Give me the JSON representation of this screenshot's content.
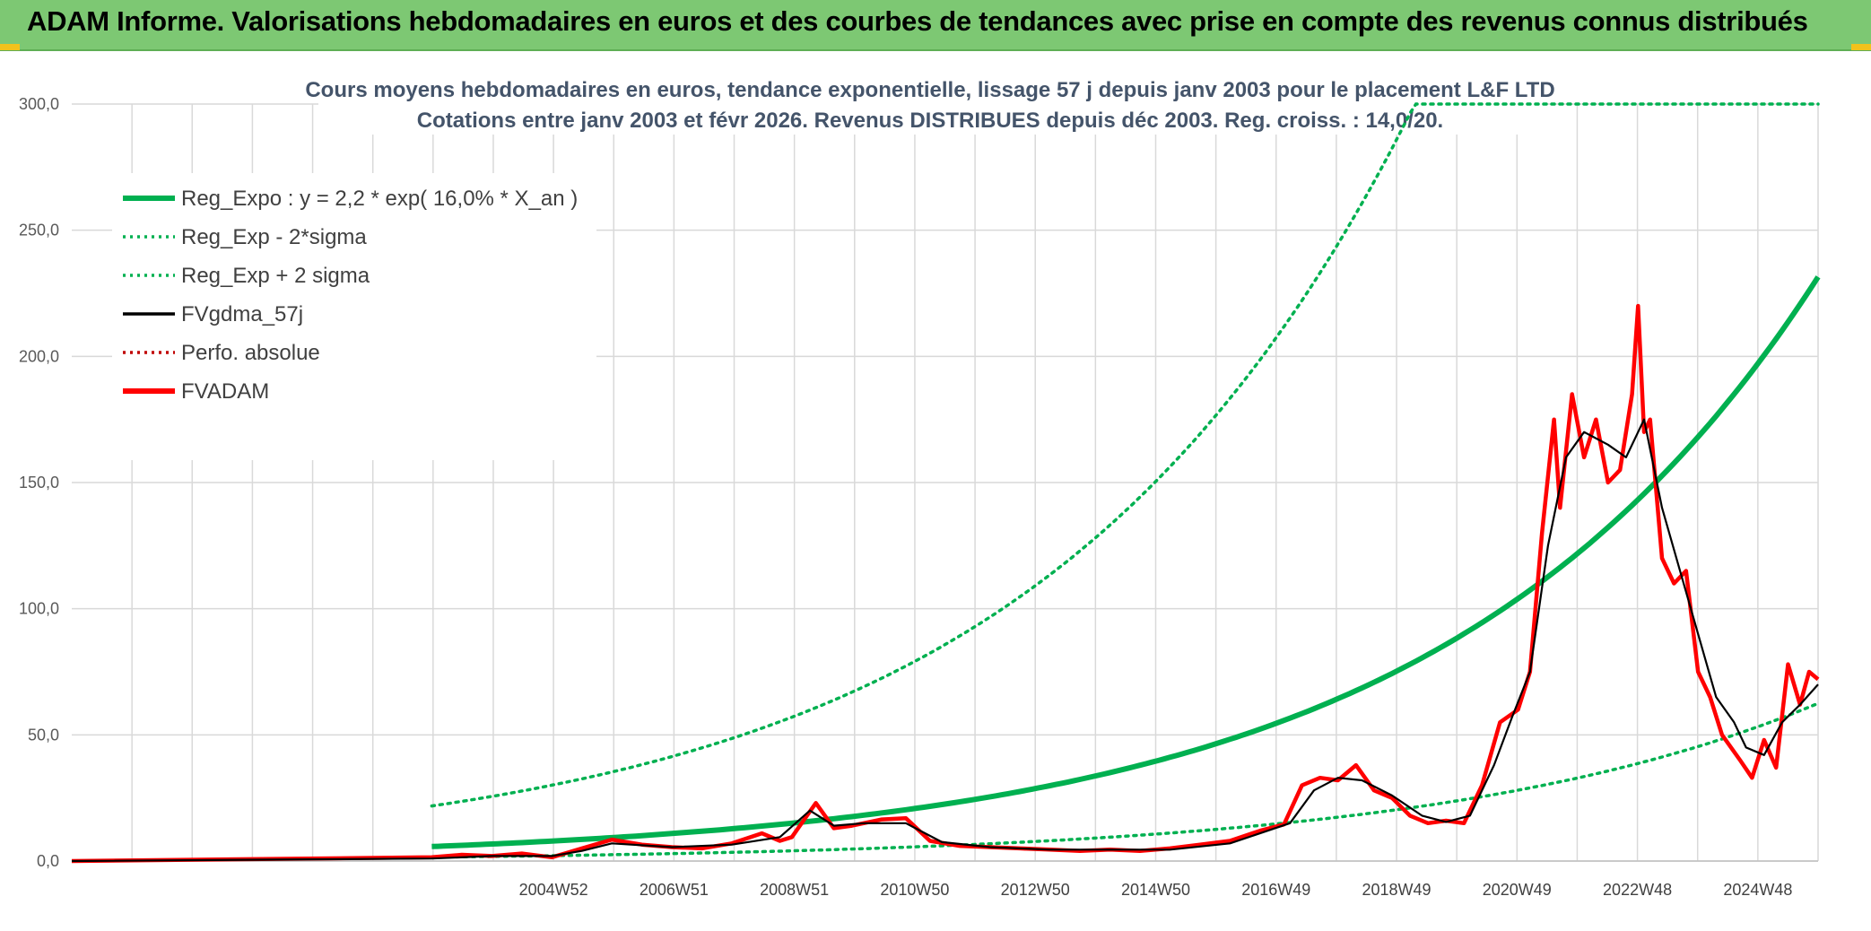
{
  "banner": {
    "title": "ADAM Informe. Valorisations hebdomadaires en euros et des courbes de tendances avec prise en compte des revenus connus distribués"
  },
  "colors": {
    "banner_bg": "#7dc873",
    "regression": "#00b050",
    "fvgdma": "#000000",
    "fvadam": "#ff0000",
    "perfo": "#c00000",
    "grid": "#d9d9d9"
  },
  "chart_data": {
    "type": "line",
    "title": "Cours moyens hebdomadaires en euros, tendance exponentielle, lissage 57 j depuis janv 2003 pour le placement L&F LTD",
    "subtitle": "Cotations entre janv 2003 et févr 2026. Revenus DISTRIBUES depuis déc 2003. Reg. croiss. : 14,0/20.",
    "y_ticks": [
      "0,0",
      "50,0",
      "100,0",
      "150,0",
      "200,0",
      "250,0",
      "300,0"
    ],
    "ylim": [
      0,
      300
    ],
    "x_ticks": [
      "2004W52",
      "2006W51",
      "2008W51",
      "2010W50",
      "2012W50",
      "2014W50",
      "2016W49",
      "2018W49",
      "2020W49",
      "2022W48",
      "2024W48"
    ],
    "xlim": [
      1997,
      2026.1
    ],
    "grid": true,
    "legend_position": "top-left",
    "legend": [
      {
        "label": "Reg_Expo : y = 2,2 * exp( 16,0% *  X_an )",
        "style": "solid-thick",
        "color": "#00b050"
      },
      {
        "label": "Reg_Exp - 2*sigma",
        "style": "dotted",
        "color": "#00b050"
      },
      {
        "label": "Reg_Exp + 2 sigma",
        "style": "dotted",
        "color": "#00b050"
      },
      {
        "label": "FVgdma_57j",
        "style": "solid",
        "color": "#000000"
      },
      {
        "label": "Perfo. absolue",
        "style": "dotted",
        "color": "#c00000"
      },
      {
        "label": "FVADAM",
        "style": "solid-thick",
        "color": "#ff0000"
      }
    ],
    "regression": {
      "a": 2.2,
      "rate": 0.16,
      "start": 2003.0,
      "end": 2026.1,
      "upper_factor": 3.8,
      "lower_factor": 0.27,
      "cap": 300
    },
    "fvadam": {
      "x": [
        1997,
        2003.0,
        2003.5,
        2004.0,
        2004.5,
        2005.0,
        2005.5,
        2006.0,
        2006.5,
        2007.0,
        2007.5,
        2008.0,
        2008.5,
        2008.8,
        2009.0,
        2009.4,
        2009.7,
        2010.0,
        2010.5,
        2010.9,
        2011.3,
        2011.8,
        2012.3,
        2012.8,
        2013.3,
        2013.8,
        2014.3,
        2014.8,
        2015.3,
        2015.8,
        2016.3,
        2016.8,
        2017.2,
        2017.5,
        2017.8,
        2018.1,
        2018.4,
        2018.7,
        2019.0,
        2019.3,
        2019.6,
        2019.9,
        2020.2,
        2020.5,
        2020.8,
        2021.1,
        2021.3,
        2021.5,
        2021.7,
        2021.8,
        2022.0,
        2022.2,
        2022.4,
        2022.6,
        2022.8,
        2023.0,
        2023.1,
        2023.2,
        2023.3,
        2023.5,
        2023.7,
        2023.9,
        2024.1,
        2024.3,
        2024.5,
        2024.8,
        2025.0,
        2025.2,
        2025.4,
        2025.6,
        2025.8,
        2025.95,
        2026.1
      ],
      "y": [
        0,
        1.5,
        2.5,
        2.0,
        3.0,
        1.5,
        5.0,
        8.5,
        6.5,
        5.5,
        5.0,
        7.0,
        11.0,
        8.0,
        9.5,
        23.0,
        13.0,
        14.0,
        16.5,
        17.0,
        8.0,
        6.0,
        5.5,
        5.0,
        4.5,
        4.0,
        4.5,
        4.0,
        5.0,
        6.5,
        8.0,
        12.0,
        14.5,
        30.0,
        33.0,
        32.0,
        38.0,
        28.0,
        25.0,
        18.0,
        15.0,
        16.0,
        15.0,
        30.0,
        55.0,
        60.0,
        75.0,
        130.0,
        175.0,
        140.0,
        185.0,
        160.0,
        175.0,
        150.0,
        155.0,
        185.0,
        220.0,
        170.0,
        175.0,
        120.0,
        110.0,
        115.0,
        75.0,
        65.0,
        50.0,
        40.0,
        33.0,
        48.0,
        37.0,
        78.0,
        62.0,
        75.0,
        72.0
      ]
    },
    "fvgdma": {
      "x": [
        1997,
        2003.0,
        2004.0,
        2005.0,
        2005.5,
        2006.0,
        2007.0,
        2008.0,
        2008.8,
        2009.3,
        2009.7,
        2010.2,
        2010.9,
        2011.5,
        2012.3,
        2013.3,
        2014.3,
        2015.3,
        2016.3,
        2016.8,
        2017.3,
        2017.7,
        2018.1,
        2018.5,
        2019.0,
        2019.5,
        2019.9,
        2020.3,
        2020.7,
        2021.0,
        2021.3,
        2021.6,
        2021.9,
        2022.2,
        2022.6,
        2022.9,
        2023.2,
        2023.5,
        2023.8,
        2024.1,
        2024.4,
        2024.7,
        2024.9,
        2025.2,
        2025.5,
        2025.8,
        2026.1
      ],
      "y": [
        0,
        1.0,
        2.0,
        2.0,
        4.0,
        7.0,
        5.5,
        6.5,
        9.5,
        20.0,
        14.0,
        15.0,
        15.0,
        7.5,
        5.5,
        4.5,
        4.5,
        4.5,
        7.0,
        11.0,
        15.0,
        28.0,
        33.0,
        32.0,
        26.0,
        18.0,
        15.5,
        18.0,
        38.0,
        57.0,
        75.0,
        125.0,
        160.0,
        170.0,
        165.0,
        160.0,
        175.0,
        140.0,
        115.0,
        90.0,
        65.0,
        55.0,
        45.0,
        42.0,
        55.0,
        62.0,
        70.0
      ]
    }
  }
}
